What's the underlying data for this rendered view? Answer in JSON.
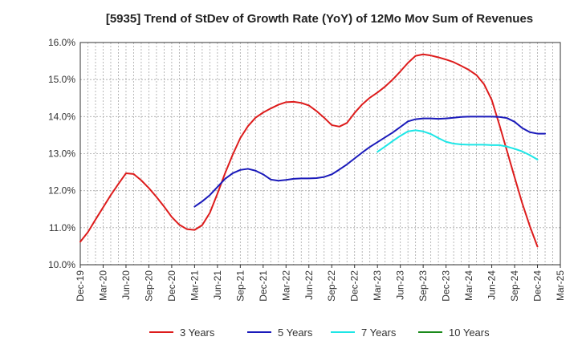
{
  "chart_data": {
    "type": "line",
    "title": "[5935]  Trend of StDev of Growth Rate (YoY) of 12Mo Mov Sum of Revenues",
    "xlabel": "",
    "ylabel": "",
    "ylim": [
      10.0,
      16.0
    ],
    "yticks": [
      10.0,
      11.0,
      12.0,
      13.0,
      14.0,
      15.0,
      16.0
    ],
    "ytick_labels": [
      "10.0%",
      "11.0%",
      "12.0%",
      "13.0%",
      "14.0%",
      "15.0%",
      "16.0%"
    ],
    "x_start": "Dec-19",
    "x_count": 64,
    "xtick_labels": [
      "Dec-19",
      "Mar-20",
      "Jun-20",
      "Sep-20",
      "Dec-20",
      "Mar-21",
      "Jun-21",
      "Sep-21",
      "Dec-21",
      "Mar-22",
      "Jun-22",
      "Sep-22",
      "Dec-22",
      "Mar-23",
      "Jun-23",
      "Sep-23",
      "Dec-23",
      "Mar-24",
      "Jun-24",
      "Sep-24",
      "Dec-24",
      "Mar-25"
    ],
    "grid": true,
    "legend_position": "bottom",
    "series": [
      {
        "name": "3 Years",
        "color": "#dd1c1c",
        "start_index": 0,
        "values": [
          10.62,
          10.88,
          11.22,
          11.55,
          11.88,
          12.18,
          12.47,
          12.45,
          12.28,
          12.07,
          11.83,
          11.57,
          11.29,
          11.08,
          10.96,
          10.94,
          11.07,
          11.4,
          11.92,
          12.47,
          12.97,
          13.42,
          13.74,
          13.97,
          14.11,
          14.22,
          14.32,
          14.39,
          14.4,
          14.37,
          14.3,
          14.15,
          13.97,
          13.77,
          13.73,
          13.83,
          14.1,
          14.33,
          14.51,
          14.65,
          14.81,
          15.0,
          15.22,
          15.45,
          15.64,
          15.68,
          15.65,
          15.6,
          15.54,
          15.47,
          15.37,
          15.26,
          15.12,
          14.87,
          14.45,
          13.78,
          13.07,
          12.36,
          11.66,
          11.04,
          10.49
        ]
      },
      {
        "name": "5 Years",
        "color": "#1a1aba",
        "start_index": 15,
        "values": [
          11.57,
          11.71,
          11.88,
          12.1,
          12.32,
          12.47,
          12.56,
          12.59,
          12.54,
          12.44,
          12.3,
          12.27,
          12.29,
          12.32,
          12.33,
          12.33,
          12.34,
          12.37,
          12.44,
          12.57,
          12.71,
          12.87,
          13.03,
          13.18,
          13.31,
          13.44,
          13.57,
          13.72,
          13.87,
          13.93,
          13.95,
          13.95,
          13.94,
          13.95,
          13.97,
          13.99,
          14.0,
          14.0,
          14.0,
          14.0,
          13.99,
          13.96,
          13.86,
          13.69,
          13.58,
          13.54,
          13.54
        ]
      },
      {
        "name": "7 Years",
        "color": "#1de6e6",
        "start_index": 39,
        "values": [
          13.05,
          13.19,
          13.34,
          13.48,
          13.6,
          13.63,
          13.6,
          13.53,
          13.42,
          13.32,
          13.27,
          13.25,
          13.24,
          13.24,
          13.24,
          13.23,
          13.23,
          13.19,
          13.13,
          13.06,
          12.96,
          12.84
        ]
      },
      {
        "name": "10 Years",
        "color": "#1a8a1a",
        "start_index": 61,
        "values": []
      }
    ]
  }
}
